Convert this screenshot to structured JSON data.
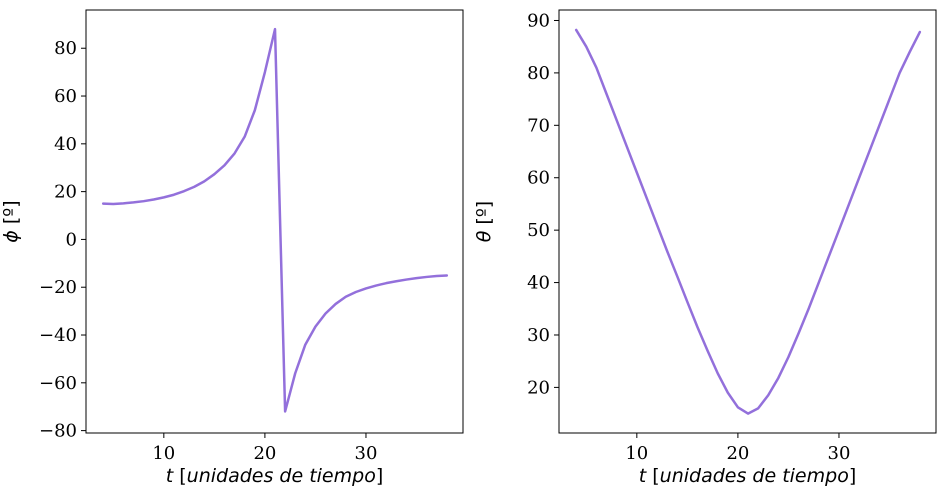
{
  "colors": {
    "line": "#9370DB"
  },
  "chart_data": [
    {
      "type": "line",
      "xlabel": {
        "var": "t",
        "unit": "unidades de tiempo"
      },
      "ylabel": {
        "var": "ϕ",
        "unit": "[º]"
      },
      "xlim": [
        2.3,
        39.6
      ],
      "ylim": [
        -81,
        96
      ],
      "xticks": [
        10,
        20,
        30
      ],
      "yticks": [
        -80,
        -60,
        -40,
        -20,
        0,
        20,
        40,
        60,
        80
      ],
      "grid": false,
      "series": [
        {
          "x": [
            4,
            5,
            6,
            7,
            8,
            9,
            10,
            11,
            12,
            13,
            14,
            15,
            16,
            17,
            18,
            19,
            20,
            21,
            22,
            23,
            24,
            25,
            26,
            27,
            28,
            29,
            30,
            31,
            32,
            33,
            34,
            35,
            36,
            37,
            38
          ],
          "y": [
            15,
            14.8,
            15.1,
            15.5,
            16,
            16.7,
            17.6,
            18.7,
            20.2,
            22,
            24.3,
            27.3,
            31,
            36,
            43,
            54,
            70,
            88,
            -72,
            -56,
            -44,
            -36.5,
            -31,
            -27,
            -24,
            -22,
            -20.5,
            -19.3,
            -18.3,
            -17.5,
            -16.8,
            -16.2,
            -15.7,
            -15.3,
            -15.1
          ]
        }
      ]
    },
    {
      "type": "line",
      "xlabel": {
        "var": "t",
        "unit": "unidades de tiempo"
      },
      "ylabel": {
        "var": "θ",
        "unit": "[º]"
      },
      "xlim": [
        2.3,
        39.6
      ],
      "ylim": [
        11.3,
        92
      ],
      "xticks": [
        10,
        20,
        30
      ],
      "yticks": [
        20,
        30,
        40,
        50,
        60,
        70,
        80,
        90
      ],
      "grid": false,
      "series": [
        {
          "x": [
            4,
            5,
            6,
            7,
            8,
            9,
            10,
            11,
            12,
            13,
            14,
            15,
            16,
            17,
            18,
            19,
            20,
            21,
            22,
            23,
            24,
            25,
            26,
            27,
            28,
            29,
            30,
            31,
            32,
            33,
            34,
            35,
            36,
            37,
            38
          ],
          "y": [
            88.2,
            85,
            81,
            76,
            71,
            66,
            61,
            56,
            51,
            46,
            41.2,
            36.3,
            31.5,
            27,
            22.7,
            19,
            16.2,
            15,
            16,
            18.5,
            21.8,
            25.8,
            30.3,
            35,
            40,
            45,
            50,
            55,
            60,
            65,
            70,
            75,
            80,
            84,
            87.8
          ]
        }
      ]
    }
  ]
}
